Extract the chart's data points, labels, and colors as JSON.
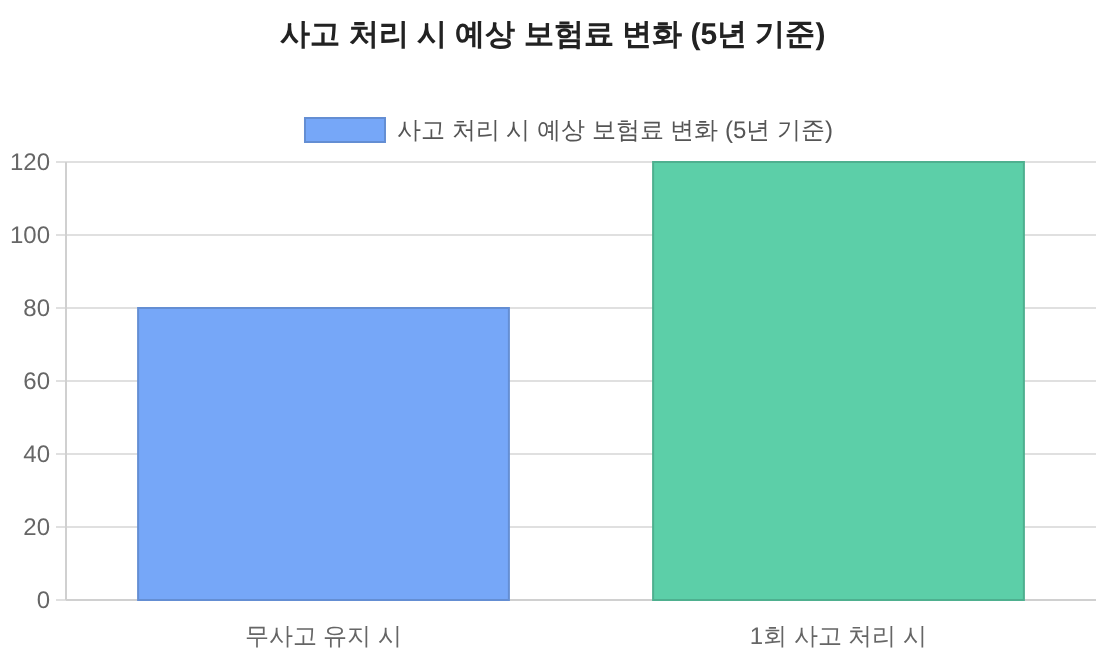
{
  "chart_data": {
    "type": "bar",
    "title": "사고 처리 시 예상 보험료 변화 (5년 기준)",
    "categories": [
      "무사고 유지 시",
      "1회 사고 처리 시"
    ],
    "series": [
      {
        "name": "사고 처리 시 예상 보험료 변화 (5년 기준)",
        "colors": [
          "#76a7f8",
          "#5ccfa8"
        ],
        "values": [
          80,
          120
        ]
      }
    ],
    "ylim": [
      0,
      120
    ],
    "yticks": [
      0,
      20,
      40,
      60,
      80,
      100,
      120
    ],
    "grid": "y",
    "legend": "top"
  }
}
